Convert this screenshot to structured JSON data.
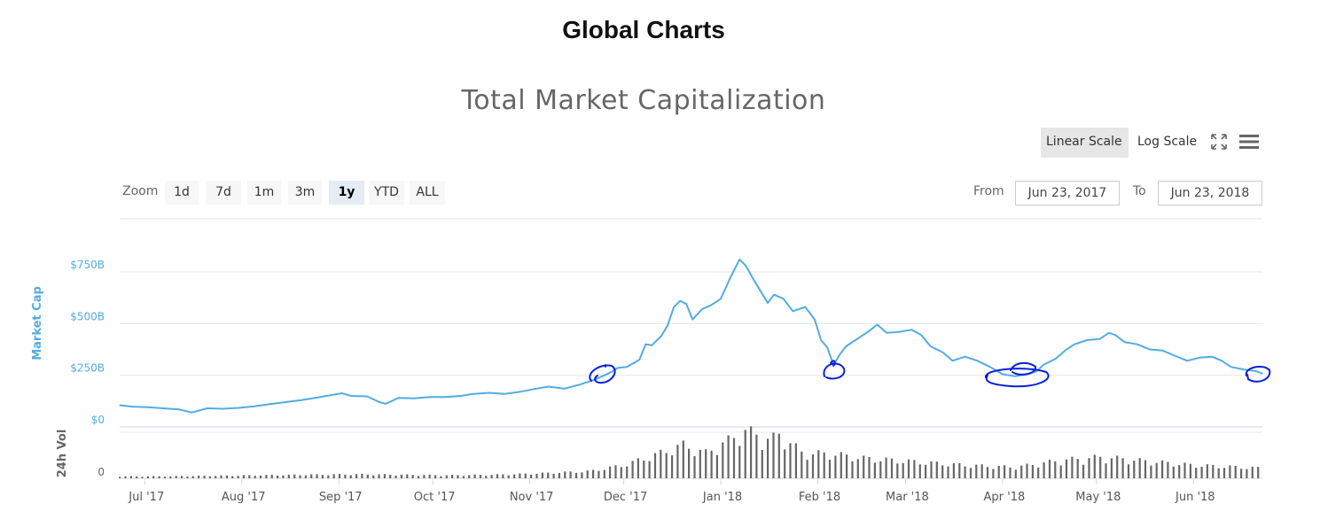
{
  "page": {
    "title": "Global Charts"
  },
  "toolbar": {
    "linear_label": "Linear Scale",
    "log_label": "Log Scale",
    "fullscreen_icon": "fullscreen-icon",
    "menu_icon": "menu-icon"
  },
  "zoom": {
    "label": "Zoom",
    "buttons": [
      "1d",
      "7d",
      "1m",
      "3m",
      "1y",
      "YTD",
      "ALL"
    ],
    "active": "1y"
  },
  "range": {
    "from_label": "From",
    "from_value": "Jun 23, 2017",
    "to_label": "To",
    "to_value": "Jun 23, 2018"
  },
  "colors": {
    "line": "#52ace0",
    "volume": "#666666",
    "axis_label": "#52ace0",
    "annotation": "#0a1fd9"
  },
  "annotations": {
    "type": "hand-drawn-circles",
    "count": 5,
    "dates": [
      "2017-11-27",
      "2018-02-06",
      "2018-04-01",
      "2018-04-14",
      "2018-06-22"
    ]
  },
  "chart_data": {
    "type": "line",
    "title": "Total Market Capitalization",
    "x_start": "2017-06-23",
    "x_end": "2018-06-23",
    "x_ticks": [
      "Jul '17",
      "Aug '17",
      "Sep '17",
      "Oct '17",
      "Nov '17",
      "Dec '17",
      "Jan '18",
      "Feb '18",
      "Mar '18",
      "Apr '18",
      "May '18",
      "Jun '18"
    ],
    "y_axis": {
      "label": "Market Cap",
      "ticks": [
        "$0",
        "$250B",
        "$500B",
        "$750B"
      ],
      "tick_values": [
        0,
        250,
        500,
        750
      ],
      "unit": "USD billions"
    },
    "series": [
      {
        "name": "Market Cap",
        "unit": "USD billions",
        "points": [
          [
            "2017-06-23",
            105
          ],
          [
            "2017-06-27",
            98
          ],
          [
            "2017-07-02",
            95
          ],
          [
            "2017-07-07",
            90
          ],
          [
            "2017-07-12",
            85
          ],
          [
            "2017-07-16",
            70
          ],
          [
            "2017-07-21",
            90
          ],
          [
            "2017-07-26",
            88
          ],
          [
            "2017-07-31",
            92
          ],
          [
            "2017-08-05",
            100
          ],
          [
            "2017-08-10",
            110
          ],
          [
            "2017-08-15",
            120
          ],
          [
            "2017-08-20",
            130
          ],
          [
            "2017-08-25",
            142
          ],
          [
            "2017-08-30",
            155
          ],
          [
            "2017-09-02",
            163
          ],
          [
            "2017-09-05",
            150
          ],
          [
            "2017-09-10",
            148
          ],
          [
            "2017-09-14",
            120
          ],
          [
            "2017-09-16",
            112
          ],
          [
            "2017-09-20",
            140
          ],
          [
            "2017-09-25",
            138
          ],
          [
            "2017-09-30",
            145
          ],
          [
            "2017-10-05",
            145
          ],
          [
            "2017-10-10",
            150
          ],
          [
            "2017-10-14",
            160
          ],
          [
            "2017-10-19",
            165
          ],
          [
            "2017-10-24",
            160
          ],
          [
            "2017-10-29",
            170
          ],
          [
            "2017-11-03",
            185
          ],
          [
            "2017-11-07",
            195
          ],
          [
            "2017-11-12",
            185
          ],
          [
            "2017-11-17",
            205
          ],
          [
            "2017-11-22",
            230
          ],
          [
            "2017-11-27",
            265
          ],
          [
            "2017-11-29",
            285
          ],
          [
            "2017-12-02",
            290
          ],
          [
            "2017-12-06",
            325
          ],
          [
            "2017-12-08",
            400
          ],
          [
            "2017-12-10",
            395
          ],
          [
            "2017-12-13",
            440
          ],
          [
            "2017-12-15",
            490
          ],
          [
            "2017-12-17",
            580
          ],
          [
            "2017-12-19",
            610
          ],
          [
            "2017-12-21",
            595
          ],
          [
            "2017-12-23",
            520
          ],
          [
            "2017-12-26",
            570
          ],
          [
            "2017-12-29",
            590
          ],
          [
            "2018-01-01",
            620
          ],
          [
            "2018-01-04",
            720
          ],
          [
            "2018-01-07",
            810
          ],
          [
            "2018-01-09",
            780
          ],
          [
            "2018-01-12",
            700
          ],
          [
            "2018-01-16",
            600
          ],
          [
            "2018-01-18",
            640
          ],
          [
            "2018-01-21",
            620
          ],
          [
            "2018-01-24",
            560
          ],
          [
            "2018-01-28",
            580
          ],
          [
            "2018-01-31",
            520
          ],
          [
            "2018-02-02",
            420
          ],
          [
            "2018-02-04",
            385
          ],
          [
            "2018-02-06",
            300
          ],
          [
            "2018-02-08",
            350
          ],
          [
            "2018-02-10",
            390
          ],
          [
            "2018-02-13",
            420
          ],
          [
            "2018-02-17",
            460
          ],
          [
            "2018-02-20",
            495
          ],
          [
            "2018-02-23",
            455
          ],
          [
            "2018-02-27",
            460
          ],
          [
            "2018-03-03",
            470
          ],
          [
            "2018-03-06",
            445
          ],
          [
            "2018-03-09",
            390
          ],
          [
            "2018-03-13",
            360
          ],
          [
            "2018-03-16",
            320
          ],
          [
            "2018-03-20",
            340
          ],
          [
            "2018-03-24",
            320
          ],
          [
            "2018-03-28",
            290
          ],
          [
            "2018-04-01",
            255
          ],
          [
            "2018-04-05",
            245
          ],
          [
            "2018-04-09",
            255
          ],
          [
            "2018-04-12",
            270
          ],
          [
            "2018-04-14",
            300
          ],
          [
            "2018-04-18",
            330
          ],
          [
            "2018-04-21",
            370
          ],
          [
            "2018-04-24",
            400
          ],
          [
            "2018-04-28",
            420
          ],
          [
            "2018-05-02",
            425
          ],
          [
            "2018-05-05",
            455
          ],
          [
            "2018-05-07",
            445
          ],
          [
            "2018-05-10",
            410
          ],
          [
            "2018-05-14",
            400
          ],
          [
            "2018-05-18",
            375
          ],
          [
            "2018-05-22",
            370
          ],
          [
            "2018-05-26",
            345
          ],
          [
            "2018-05-30",
            320
          ],
          [
            "2018-06-03",
            335
          ],
          [
            "2018-06-07",
            340
          ],
          [
            "2018-06-10",
            320
          ],
          [
            "2018-06-13",
            290
          ],
          [
            "2018-06-17",
            278
          ],
          [
            "2018-06-21",
            270
          ],
          [
            "2018-06-23",
            258
          ]
        ]
      },
      {
        "name": "24h Vol",
        "type": "column",
        "unit": "USD billions",
        "y_ticks": [
          "0"
        ],
        "points": [
          [
            "2017-06-23",
            2
          ],
          [
            "2017-07-08",
            2
          ],
          [
            "2017-07-23",
            2.5
          ],
          [
            "2017-08-07",
            3
          ],
          [
            "2017-08-22",
            3.5
          ],
          [
            "2017-09-06",
            4
          ],
          [
            "2017-09-21",
            3.5
          ],
          [
            "2017-10-06",
            3
          ],
          [
            "2017-10-21",
            3.5
          ],
          [
            "2017-11-05",
            5
          ],
          [
            "2017-11-20",
            7
          ],
          [
            "2017-12-01",
            13
          ],
          [
            "2017-12-10",
            22
          ],
          [
            "2017-12-20",
            33
          ],
          [
            "2017-12-27",
            25
          ],
          [
            "2018-01-05",
            40
          ],
          [
            "2018-01-08",
            48
          ],
          [
            "2018-01-17",
            38
          ],
          [
            "2018-01-20",
            44
          ],
          [
            "2018-01-27",
            25
          ],
          [
            "2018-02-06",
            24
          ],
          [
            "2018-02-15",
            20
          ],
          [
            "2018-03-01",
            17
          ],
          [
            "2018-03-20",
            13
          ],
          [
            "2018-04-05",
            11
          ],
          [
            "2018-04-20",
            18
          ],
          [
            "2018-05-03",
            21
          ],
          [
            "2018-05-17",
            17
          ],
          [
            "2018-06-01",
            13
          ],
          [
            "2018-06-23",
            10
          ]
        ]
      }
    ],
    "volume_axis": {
      "label": "24h Vol",
      "ticks": [
        "0"
      ]
    },
    "legend": "none",
    "grid": true
  }
}
